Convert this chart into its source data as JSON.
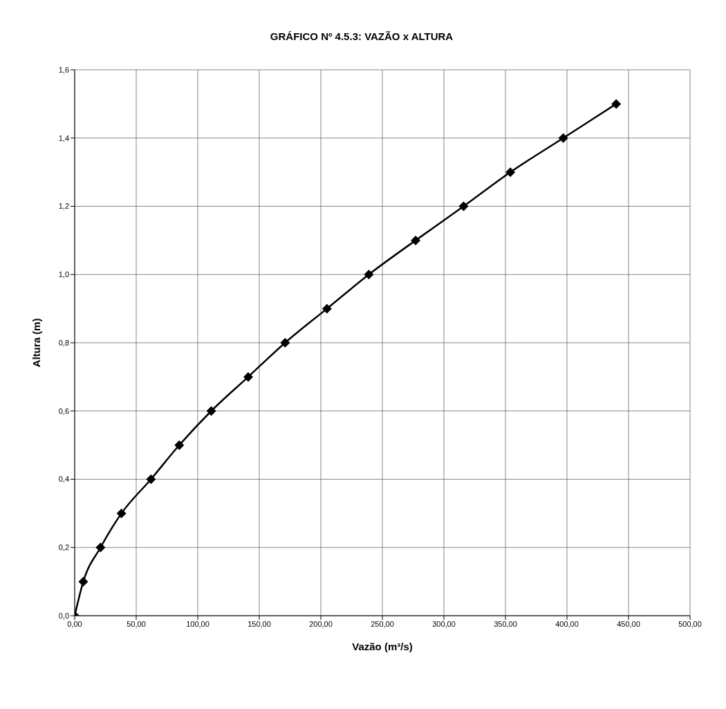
{
  "chart_data": {
    "type": "line",
    "title": "GRÁFICO Nº 4.5.3: VAZÃO x ALTURA",
    "xlabel": "Vazão (m³/s)",
    "ylabel": "Altura (m)",
    "x": [
      0,
      7,
      21,
      38,
      62,
      85,
      111,
      141,
      171,
      205,
      239,
      277,
      316,
      354,
      397,
      440
    ],
    "series": [
      {
        "color": "#000000",
        "values": [
          0,
          0.1,
          0.2,
          0.3,
          0.4,
          0.5,
          0.6,
          0.7,
          0.8,
          0.9,
          1.0,
          1.1,
          1.2,
          1.3,
          1.4,
          1.5
        ]
      }
    ],
    "xlim": [
      0,
      500
    ],
    "xticks": [
      {
        "value": 0,
        "label": "0,00"
      },
      {
        "value": 50,
        "label": "50,00"
      },
      {
        "value": 100,
        "label": "100,00"
      },
      {
        "value": 150,
        "label": "150,00"
      },
      {
        "value": 200,
        "label": "200,00"
      },
      {
        "value": 250,
        "label": "250,00"
      },
      {
        "value": 300,
        "label": "300,00"
      },
      {
        "value": 350,
        "label": "350,00"
      },
      {
        "value": 400,
        "label": "400,00"
      },
      {
        "value": 450,
        "label": "450,00"
      },
      {
        "value": 500,
        "label": "500,00"
      }
    ],
    "ylim": [
      0,
      1.6
    ],
    "yticks": [
      {
        "value": 0,
        "label": "0,0"
      },
      {
        "value": 0.2,
        "label": "0,2"
      },
      {
        "value": 0.4,
        "label": "0,4"
      },
      {
        "value": 0.6,
        "label": "0,6"
      },
      {
        "value": 0.8,
        "label": "0,8"
      },
      {
        "value": 1.0,
        "label": "1,0"
      },
      {
        "value": 1.2,
        "label": "1,2"
      },
      {
        "value": 1.4,
        "label": "1,4"
      },
      {
        "value": 1.6,
        "label": "1,6"
      }
    ],
    "grid": true,
    "legend": false,
    "marker": "diamond",
    "line_style": "solid"
  }
}
